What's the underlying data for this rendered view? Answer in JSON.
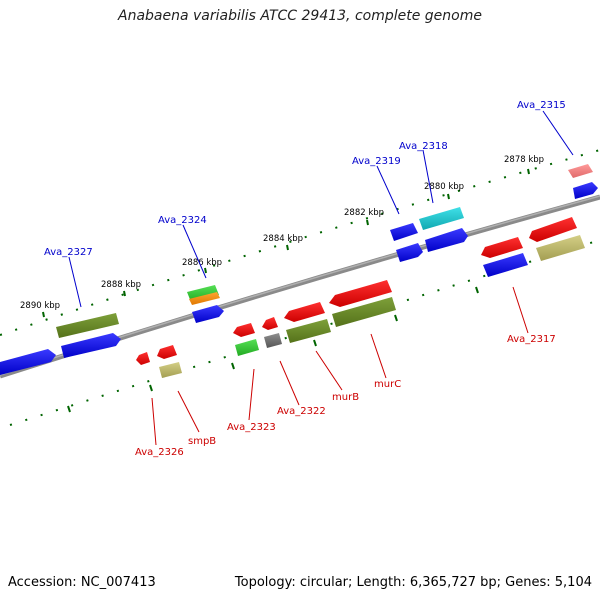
{
  "title": "Anabaena variabilis ATCC 29413, complete genome",
  "footer": {
    "accession": "Accession: NC_007413",
    "summary": "Topology: circular; Length: 6,365,727 bp; Genes: 5,104"
  },
  "ticks": [
    "2878 kbp",
    "2880 kbp",
    "2882 kbp",
    "2884 kbp",
    "2886 kbp",
    "2888 kbp",
    "2890 kbp"
  ],
  "gene_labels_top": [
    "Ava_2315",
    "Ava_2318",
    "Ava_2319",
    "Ava_2324",
    "Ava_2327"
  ],
  "gene_labels_bottom": [
    "Ava_2317",
    "murC",
    "murB",
    "Ava_2322",
    "Ava_2323",
    "smpB",
    "Ava_2326"
  ],
  "colors": {
    "forward_blue": "#0000ee",
    "cyan": "#20c8d0",
    "olive": "#6b8e23",
    "khaki": "#bdb76b",
    "red": "#ee0000",
    "pink": "#f08080",
    "green": "#32cd32",
    "orange": "#ff8c00",
    "grey": "#707070",
    "backbone": "#808080",
    "tick": "#006400",
    "label_top": "#0000cc",
    "label_bottom": "#cc0000"
  }
}
